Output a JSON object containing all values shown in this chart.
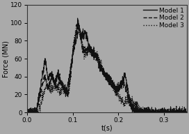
{
  "title": "",
  "xlabel": "t(s)",
  "ylabel": "Force (MN)",
  "xlim": [
    0.0,
    0.35
  ],
  "ylim": [
    0,
    120
  ],
  "xticks": [
    0.0,
    0.1,
    0.2,
    0.3
  ],
  "yticks": [
    0,
    20,
    40,
    60,
    80,
    100,
    120
  ],
  "background_color": "#aaaaaa",
  "legend_labels": [
    "Model 1",
    "Model 2",
    "Model 3"
  ],
  "legend_styles": [
    "solid",
    "dashed",
    "dotted"
  ],
  "line_color": "#111111",
  "figsize": [
    2.72,
    1.92
  ],
  "dpi": 100,
  "tick_fontsize": 6.5,
  "label_fontsize": 7,
  "legend_fontsize": 6.5
}
